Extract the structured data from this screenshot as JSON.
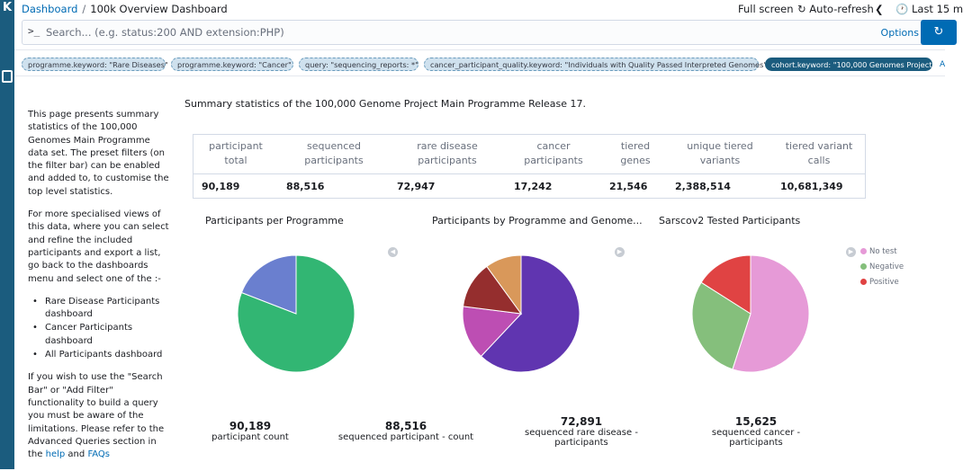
{
  "sidebar": {
    "logo": "K"
  },
  "header": {
    "breadcrumb_root": "Dashboard",
    "breadcrumb_current": "100k Overview Dashboard",
    "full_screen": "Full screen",
    "auto_refresh": "Auto-refresh",
    "time_range": "Last 15 m",
    "auto_refresh_icon": "refresh-icon",
    "clock_icon": "clock-icon",
    "chevron_icon": "chevron-left-icon"
  },
  "search": {
    "prompt": ">_",
    "placeholder": "Search... (e.g. status:200 AND extension:PHP)",
    "options": "Options"
  },
  "filters": [
    {
      "label": "programme.keyword: \"Rare Diseases\"",
      "style": "light"
    },
    {
      "label": "programme.keyword: \"Cancer\"",
      "style": "light"
    },
    {
      "label": "query: \"sequencing_reports: *\"",
      "style": "light"
    },
    {
      "label": "cancer_participant_quality.keyword: \"Individuals with Quality Passed Interpreted Genomes\"",
      "style": "light"
    },
    {
      "label": "cohort.keyword: \"100,000 Genomes Project\"",
      "style": "dark"
    }
  ],
  "filter_add": "A",
  "intro": {
    "p1": "This page presents summary statistics of the 100,000 Genomes Main Programme data set. The preset filters (on the filter bar) can be enabled and added to, to customise the top level statistics.",
    "p2": "For more specialised views of this data, where you can select and refine the included participants and export a list, go back to the dashboards menu and select one of the :-",
    "list": [
      "Rare Disease Participants dashboard",
      "Cancer Participants dashboard",
      "All Participants dashboard"
    ],
    "p3": "If you wish to use the \"Search Bar\" or \"Add Filter\" functionality to build a query you must be aware of the limitations. Please refer to the Advanced Queries section in the",
    "help_link": "help",
    "and": "and",
    "faqs_link": "FAQs"
  },
  "summary_text": "Summary statistics of the 100,000 Genome Project Main Programme Release 17.",
  "stats": {
    "headers": [
      "participant total",
      "sequenced participants",
      "rare disease participants",
      "cancer participants",
      "tiered genes",
      "unique tiered variants",
      "tiered variant calls"
    ],
    "values": [
      "90,189",
      "88,516",
      "72,947",
      "17,242",
      "21,546",
      "2,388,514",
      "10,681,349"
    ]
  },
  "charts": {
    "programme": {
      "title": "Participants per Programme",
      "colors": [
        "#6a7fcf",
        "#32b673"
      ],
      "values": [
        17242,
        72947
      ]
    },
    "genome": {
      "title": "Participants by Programme and Genome...",
      "colors": [
        "#6035b0",
        "#bd4eb3",
        "#952e2e",
        "#d9985a"
      ],
      "values": [
        62,
        15,
        13,
        10
      ]
    },
    "sarscov2": {
      "title": "Sarscov2 Tested Participants",
      "legend": [
        {
          "label": "No test",
          "color": "#e69ad7"
        },
        {
          "label": "Negative",
          "color": "#85bf7c"
        },
        {
          "label": "Positive",
          "color": "#e04343"
        }
      ],
      "values": [
        55,
        29,
        16
      ]
    }
  },
  "metrics": [
    {
      "num": "90,189",
      "label": "participant count"
    },
    {
      "num": "88,516",
      "label": "sequenced participant - count"
    },
    {
      "num": "72,891",
      "label": "sequenced rare disease - participants"
    },
    {
      "num": "15,625",
      "label": "sequenced cancer - participants"
    }
  ]
}
